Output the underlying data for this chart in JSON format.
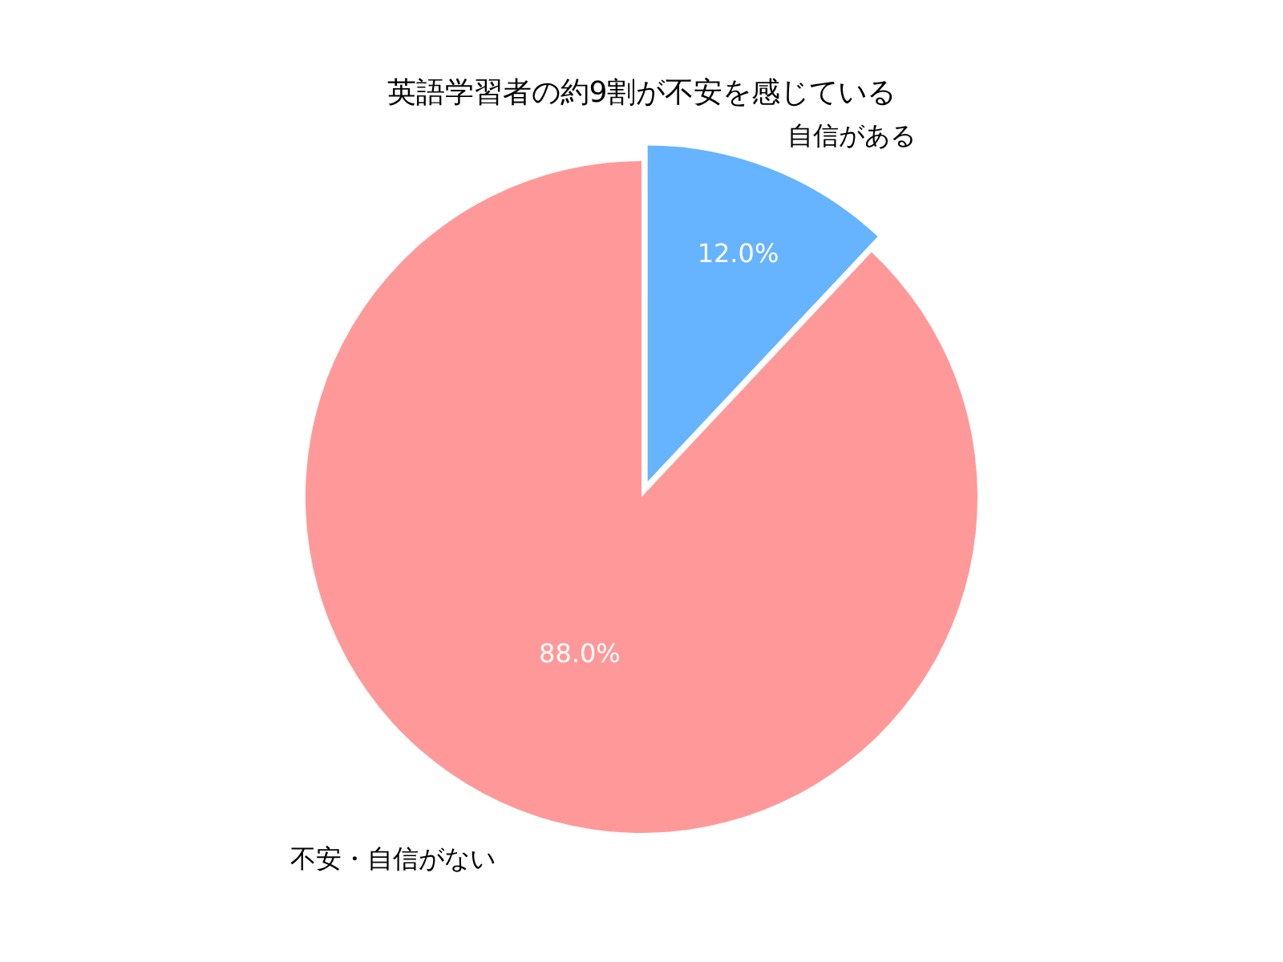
{
  "chart_data": {
    "type": "pie",
    "title": "英語学習者の約9割が不安を感じている",
    "categories": [
      "自信がある",
      "不安・自信がない"
    ],
    "values": [
      12.0,
      88.0
    ],
    "value_labels": [
      "12.0%",
      "88.0%"
    ],
    "colors": [
      "#66b3ff",
      "#ff9999"
    ],
    "legend": false
  }
}
